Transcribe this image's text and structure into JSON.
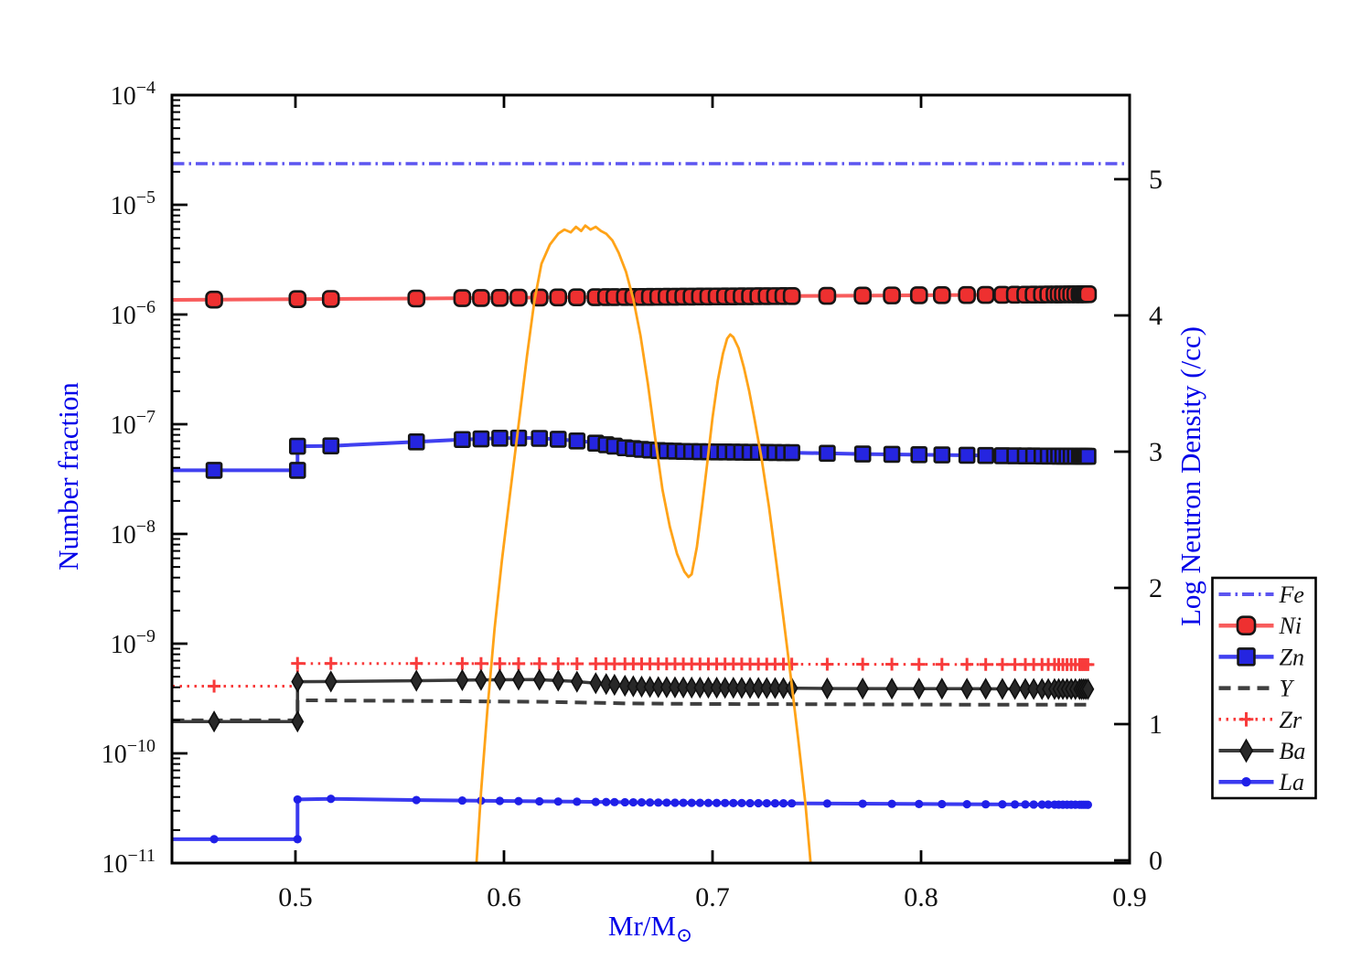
{
  "figure": {
    "background": "#ffffff",
    "label_color": "#0000e8",
    "tick_color": "#111111"
  },
  "axis_titles": {
    "x_main": "Mr/M",
    "x_sub": "⊙",
    "y_left": "Number fraction",
    "y_right": "Log Neutron Density (/cc)"
  },
  "chart_data": {
    "type": "line",
    "title": "",
    "xlabel": "Mr/M⊙",
    "ylabel_left": "Number fraction",
    "ylabel_right": "Log Neutron Density (/cc)",
    "x_axis": {
      "range": [
        0.44079,
        0.9
      ],
      "ticks": [
        0.5,
        0.6,
        0.7,
        0.8,
        0.9
      ],
      "tick_labels": [
        "0.5",
        "0.6",
        "0.7",
        "0.8",
        "0.9"
      ]
    },
    "y_axis_left": {
      "scale": "log",
      "range": [
        1e-11,
        0.0001
      ],
      "tick_exponents": [
        -4,
        -5,
        -6,
        -7,
        -8,
        -9,
        -10,
        -11
      ],
      "minor_ticks": true
    },
    "y_axis_right": {
      "scale": "linear",
      "range": [
        0,
        5.64
      ],
      "ticks": [
        0,
        1,
        2,
        3,
        4,
        5
      ]
    },
    "marker_grid": [
      0.461,
      0.501,
      0.517,
      0.558,
      0.58,
      0.589,
      0.598,
      0.607,
      0.617,
      0.626,
      0.635,
      0.644,
      0.649,
      0.653,
      0.658,
      0.662,
      0.666,
      0.67,
      0.674,
      0.678,
      0.682,
      0.686,
      0.69,
      0.694,
      0.698,
      0.702,
      0.706,
      0.71,
      0.714,
      0.718,
      0.722,
      0.726,
      0.73,
      0.734,
      0.738,
      0.755,
      0.772,
      0.786,
      0.799,
      0.81,
      0.822,
      0.831,
      0.839,
      0.845,
      0.85,
      0.854,
      0.858,
      0.861,
      0.864,
      0.866,
      0.868,
      0.87,
      0.872,
      0.874,
      0.876,
      0.877,
      0.878,
      0.879,
      0.88
    ],
    "series": [
      {
        "name": "Fe",
        "axis": "left",
        "color": "#5c55f0",
        "line": "dashdot",
        "lw": 3.5,
        "marker": "none",
        "points": [
          [
            0.441,
            2.37e-05
          ],
          [
            0.898,
            2.37e-05
          ]
        ]
      },
      {
        "name": "Ni",
        "axis": "left",
        "color": "#f85c5c",
        "line": "solid",
        "lw": 4,
        "marker": "roundsquare",
        "marker_fill": "#ee3030",
        "marker_edge": "#161616",
        "use_grid": true,
        "points": [
          [
            0.441,
            1.36e-06
          ],
          [
            0.5,
            1.38e-06
          ],
          [
            0.56,
            1.4e-06
          ],
          [
            0.62,
            1.43e-06
          ],
          [
            0.7,
            1.46e-06
          ],
          [
            0.78,
            1.49e-06
          ],
          [
            0.88,
            1.53e-06
          ]
        ]
      },
      {
        "name": "Zn",
        "axis": "left",
        "color": "#4040f0",
        "line": "solid",
        "lw": 4,
        "marker": "square",
        "marker_fill": "#2525e0",
        "marker_edge": "#161616",
        "use_grid": true,
        "extra_markers": [
          [
            0.501,
            3.8e-08
          ]
        ],
        "points": [
          [
            0.441,
            3.8e-08
          ],
          [
            0.501,
            3.8e-08
          ],
          [
            0.501,
            6.3e-08
          ],
          [
            0.517,
            6.35e-08
          ],
          [
            0.558,
            6.9e-08
          ],
          [
            0.58,
            7.25e-08
          ],
          [
            0.598,
            7.45e-08
          ],
          [
            0.612,
            7.5e-08
          ],
          [
            0.626,
            7.3e-08
          ],
          [
            0.64,
            6.9e-08
          ],
          [
            0.649,
            6.5e-08
          ],
          [
            0.658,
            6.1e-08
          ],
          [
            0.666,
            5.9e-08
          ],
          [
            0.674,
            5.75e-08
          ],
          [
            0.686,
            5.65e-08
          ],
          [
            0.7,
            5.6e-08
          ],
          [
            0.72,
            5.55e-08
          ],
          [
            0.74,
            5.5e-08
          ],
          [
            0.772,
            5.35e-08
          ],
          [
            0.81,
            5.25e-08
          ],
          [
            0.845,
            5.15e-08
          ],
          [
            0.88,
            5.1e-08
          ]
        ]
      },
      {
        "name": "Y",
        "axis": "left",
        "color": "#3f3f3f",
        "line": "dash",
        "lw": 4,
        "marker": "none",
        "points": [
          [
            0.441,
            2e-10
          ],
          [
            0.501,
            2e-10
          ],
          [
            0.501,
            3.05e-10
          ],
          [
            0.56,
            3e-10
          ],
          [
            0.62,
            2.95e-10
          ],
          [
            0.66,
            2.85e-10
          ],
          [
            0.7,
            2.82e-10
          ],
          [
            0.76,
            2.8e-10
          ],
          [
            0.82,
            2.78e-10
          ],
          [
            0.88,
            2.78e-10
          ]
        ]
      },
      {
        "name": "Zr",
        "axis": "left",
        "color": "#f83b3b",
        "line": "dot",
        "lw": 3,
        "marker": "plus",
        "marker_fill": "#f83b3b",
        "marker_edge": "#f83b3b",
        "use_grid": true,
        "points": [
          [
            0.441,
            4.1e-10
          ],
          [
            0.501,
            4.1e-10
          ],
          [
            0.501,
            6.6e-10
          ],
          [
            0.56,
            6.6e-10
          ],
          [
            0.65,
            6.55e-10
          ],
          [
            0.75,
            6.5e-10
          ],
          [
            0.88,
            6.45e-10
          ]
        ]
      },
      {
        "name": "Ba",
        "axis": "left",
        "color": "#3a3a3a",
        "line": "solid",
        "lw": 3.5,
        "marker": "diamond",
        "marker_fill": "#282828",
        "marker_edge": "#101010",
        "use_grid": true,
        "extra_markers": [
          [
            0.501,
            1.95e-10
          ]
        ],
        "points": [
          [
            0.441,
            1.95e-10
          ],
          [
            0.501,
            1.95e-10
          ],
          [
            0.501,
            4.5e-10
          ],
          [
            0.52,
            4.52e-10
          ],
          [
            0.56,
            4.6e-10
          ],
          [
            0.59,
            4.68e-10
          ],
          [
            0.615,
            4.7e-10
          ],
          [
            0.632,
            4.55e-10
          ],
          [
            0.648,
            4.3e-10
          ],
          [
            0.66,
            4.1e-10
          ],
          [
            0.672,
            4.02e-10
          ],
          [
            0.69,
            3.98e-10
          ],
          [
            0.72,
            3.95e-10
          ],
          [
            0.76,
            3.9e-10
          ],
          [
            0.82,
            3.88e-10
          ],
          [
            0.88,
            3.85e-10
          ]
        ]
      },
      {
        "name": "La",
        "axis": "left",
        "color": "#3a3af0",
        "line": "solid",
        "lw": 4,
        "marker": "dot",
        "marker_fill": "#1f1fe8",
        "marker_edge": "#1f1fe8",
        "use_grid": true,
        "extra_markers": [
          [
            0.501,
            1.65e-11
          ]
        ],
        "points": [
          [
            0.441,
            1.65e-11
          ],
          [
            0.501,
            1.65e-11
          ],
          [
            0.501,
            3.8e-11
          ],
          [
            0.517,
            3.85e-11
          ],
          [
            0.56,
            3.75e-11
          ],
          [
            0.62,
            3.65e-11
          ],
          [
            0.68,
            3.55e-11
          ],
          [
            0.74,
            3.5e-11
          ],
          [
            0.81,
            3.45e-11
          ],
          [
            0.88,
            3.4e-11
          ]
        ]
      },
      {
        "name": "neutron-density",
        "axis": "right",
        "color": "#ffa318",
        "line": "solid",
        "lw": 2.8,
        "marker": "none",
        "points": [
          [
            0.5865,
            -0.1
          ],
          [
            0.589,
            0.5
          ],
          [
            0.592,
            1.1
          ],
          [
            0.5955,
            1.7
          ],
          [
            0.599,
            2.2
          ],
          [
            0.603,
            2.7
          ],
          [
            0.607,
            3.2
          ],
          [
            0.611,
            3.7
          ],
          [
            0.6145,
            4.1
          ],
          [
            0.618,
            4.38
          ],
          [
            0.622,
            4.52
          ],
          [
            0.626,
            4.6
          ],
          [
            0.629,
            4.63
          ],
          [
            0.632,
            4.61
          ],
          [
            0.6345,
            4.65
          ],
          [
            0.637,
            4.62
          ],
          [
            0.639,
            4.66
          ],
          [
            0.6415,
            4.63
          ],
          [
            0.644,
            4.65
          ],
          [
            0.6465,
            4.62
          ],
          [
            0.649,
            4.6
          ],
          [
            0.652,
            4.55
          ],
          [
            0.655,
            4.46
          ],
          [
            0.6585,
            4.32
          ],
          [
            0.662,
            4.12
          ],
          [
            0.6655,
            3.85
          ],
          [
            0.669,
            3.5
          ],
          [
            0.6725,
            3.1
          ],
          [
            0.676,
            2.72
          ],
          [
            0.6795,
            2.45
          ],
          [
            0.683,
            2.25
          ],
          [
            0.6865,
            2.12
          ],
          [
            0.6885,
            2.08
          ],
          [
            0.69,
            2.1
          ],
          [
            0.6925,
            2.3
          ],
          [
            0.695,
            2.6
          ],
          [
            0.6975,
            2.92
          ],
          [
            0.7,
            3.25
          ],
          [
            0.7025,
            3.52
          ],
          [
            0.705,
            3.72
          ],
          [
            0.707,
            3.83
          ],
          [
            0.7085,
            3.86
          ],
          [
            0.71,
            3.84
          ],
          [
            0.7125,
            3.76
          ],
          [
            0.715,
            3.62
          ],
          [
            0.7175,
            3.45
          ],
          [
            0.72,
            3.25
          ],
          [
            0.7235,
            2.95
          ],
          [
            0.727,
            2.6
          ],
          [
            0.7305,
            2.2
          ],
          [
            0.734,
            1.78
          ],
          [
            0.7375,
            1.35
          ],
          [
            0.741,
            0.9
          ],
          [
            0.7445,
            0.42
          ],
          [
            0.7475,
            -0.1
          ]
        ]
      }
    ],
    "legend": {
      "entries": [
        "Fe",
        "Ni",
        "Zn",
        "Y",
        "Zr",
        "Ba",
        "La"
      ],
      "position": "right-outside"
    }
  }
}
